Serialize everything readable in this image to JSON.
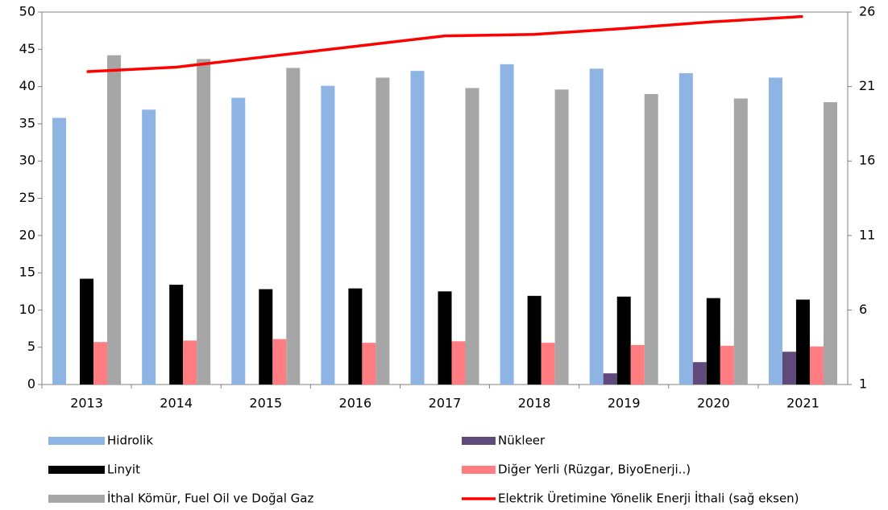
{
  "chart_data": {
    "type": "bar",
    "categories": [
      "2013",
      "2014",
      "2015",
      "2016",
      "2017",
      "2018",
      "2019",
      "2020",
      "2021"
    ],
    "series": [
      {
        "name": "Hidrolik",
        "color": "#8eb4e3",
        "values": [
          35.8,
          36.9,
          38.5,
          40.1,
          42.1,
          43.0,
          42.4,
          41.8,
          41.2
        ]
      },
      {
        "name": "Nükleer",
        "color": "#604a7b",
        "values": [
          0,
          0,
          0,
          0,
          0,
          0,
          1.5,
          3.0,
          4.4
        ]
      },
      {
        "name": "Linyit",
        "color": "#000000",
        "values": [
          14.2,
          13.4,
          12.8,
          12.9,
          12.5,
          11.9,
          11.8,
          11.6,
          11.4
        ]
      },
      {
        "name": "Diğer Yerli (Rüzgar, BiyoEnerji..)",
        "color": "#ff7c80",
        "values": [
          5.7,
          5.9,
          6.1,
          5.6,
          5.8,
          5.6,
          5.3,
          5.2,
          5.1
        ]
      },
      {
        "name": "İthal Kömür, Fuel Oil ve Doğal Gaz",
        "color": "#a6a6a6",
        "values": [
          44.2,
          43.7,
          42.5,
          41.2,
          39.8,
          39.6,
          39.0,
          38.4,
          37.9
        ]
      },
      {
        "name": "Elektrik Üretimine Yönelik Enerji İthali (sağ eksen)",
        "color": "#ff0000",
        "type": "line",
        "axis": "y2",
        "values": [
          22.0,
          22.3,
          23.0,
          23.7,
          24.4,
          24.5,
          24.9,
          25.35,
          25.7
        ]
      }
    ],
    "ylim": [
      0,
      50
    ],
    "yticks": [
      0,
      5,
      10,
      15,
      20,
      25,
      30,
      35,
      40,
      45,
      50
    ],
    "y2lim": [
      1,
      26
    ],
    "y2ticks": [
      1,
      6,
      11,
      16,
      21,
      26
    ],
    "grid": false
  }
}
